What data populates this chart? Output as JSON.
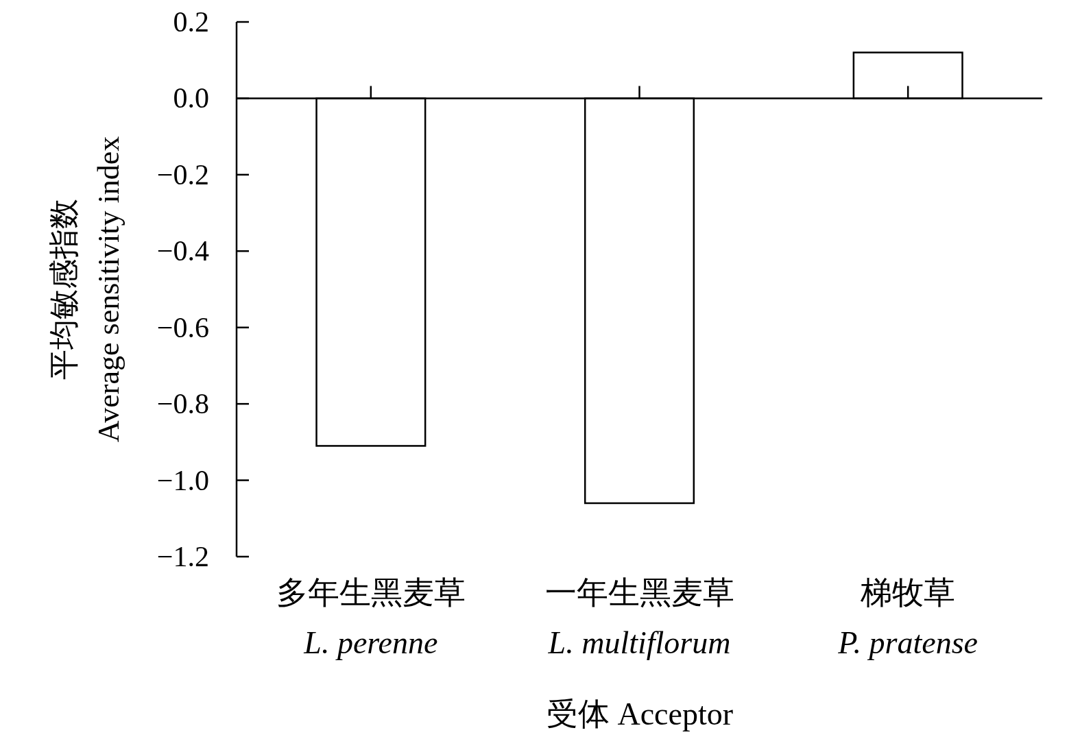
{
  "chart_data": {
    "type": "bar",
    "xlabel": "受体 Acceptor",
    "ylabel": "平均敏感指数\nAverage sensitivity index",
    "categories": [
      "多年生黑麦草\nL. perenne",
      "一年生黑麦草\nL. multiflorum",
      "梯牧草\nP. pratense"
    ],
    "values": [
      -0.91,
      -1.06,
      0.12
    ],
    "color": "#ffffff",
    "ylim": [
      -1.2,
      0.2
    ],
    "yticks": [
      {
        "value": 0.2,
        "label": "0.2"
      },
      {
        "value": 0,
        "label": "0.0"
      },
      {
        "value": -0.2,
        "label": "−0.2"
      },
      {
        "value": -0.4,
        "label": "−0.4"
      },
      {
        "value": -0.6,
        "label": "−0.6"
      },
      {
        "value": -0.8,
        "label": "−0.8"
      },
      {
        "value": -1.0,
        "label": "−1.0"
      },
      {
        "value": -1.2,
        "label": "−1.2"
      }
    ],
    "tick_labels": "xy"
  }
}
